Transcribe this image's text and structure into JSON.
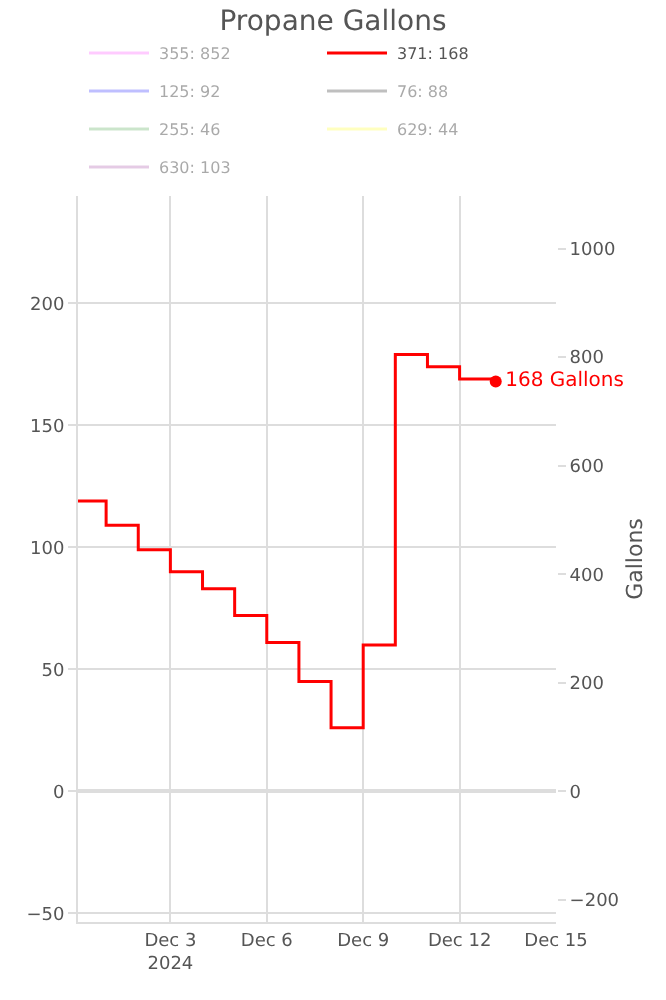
{
  "chart_data": {
    "type": "step",
    "title": "Propane Gallons",
    "y2label": "Gallons",
    "x": [
      "2024-11-30T03:00",
      "2024-12-01",
      "2024-12-02",
      "2024-12-03",
      "2024-12-04",
      "2024-12-05",
      "2024-12-06",
      "2024-12-07",
      "2024-12-08",
      "2024-12-09",
      "2024-12-10",
      "2024-12-11",
      "2024-12-12",
      "2024-12-13T03:00"
    ],
    "series": [
      {
        "name": "355: 852",
        "color": "#ff99ff",
        "values": [
          null,
          null,
          null,
          null,
          null,
          null,
          null,
          null,
          null,
          null,
          null,
          null,
          null,
          null
        ]
      },
      {
        "name": "371: 168",
        "color": "#ff0000",
        "values": [
          119,
          109,
          99,
          90,
          83,
          72,
          61,
          45,
          26,
          60,
          179,
          174,
          169,
          168
        ]
      },
      {
        "name": "125: 92",
        "color": "#8080ff",
        "values": [
          null,
          null,
          null,
          null,
          null,
          null,
          null,
          null,
          null,
          null,
          null,
          null,
          null,
          null
        ]
      },
      {
        "name": "76: 88",
        "color": "#808080",
        "values": [
          null,
          null,
          null,
          null,
          null,
          null,
          null,
          null,
          null,
          null,
          null,
          null,
          null,
          null
        ]
      },
      {
        "name": "255: 46",
        "color": "#99cc99",
        "values": [
          null,
          null,
          null,
          null,
          null,
          null,
          null,
          null,
          null,
          null,
          null,
          null,
          null,
          null
        ]
      },
      {
        "name": "629: 44",
        "color": "#ffff80",
        "values": [
          null,
          null,
          null,
          null,
          null,
          null,
          null,
          null,
          null,
          null,
          null,
          null,
          null,
          null
        ]
      },
      {
        "name": "630: 103",
        "color": "#cc99cc",
        "values": [
          null,
          null,
          null,
          null,
          null,
          null,
          null,
          null,
          null,
          null,
          null,
          null,
          null,
          null
        ]
      }
    ],
    "annotations": [
      {
        "text": "168 Gallons",
        "x": "2024-12-13T03:00",
        "y": 168
      }
    ],
    "xlim": [
      "2024-11-30T03:00",
      "2024-12-15"
    ],
    "xticks": [
      {
        "value": "2024-12-03",
        "label": "Dec 3\n2024"
      },
      {
        "value": "2024-12-06",
        "label": "Dec 6"
      },
      {
        "value": "2024-12-09",
        "label": "Dec 9"
      },
      {
        "value": "2024-12-12",
        "label": "Dec 12"
      },
      {
        "value": "2024-12-15",
        "label": "Dec 15"
      }
    ],
    "ylim": [
      -53.6,
      244
    ],
    "yticks": [
      -50,
      0,
      50,
      100,
      150,
      200
    ],
    "y2lim": [
      -241,
      1097
    ],
    "y2ticks": [
      -200,
      0,
      200,
      400,
      600,
      800,
      1000
    ],
    "grid": true,
    "legend": "top",
    "marker": "none",
    "line_style": "solid"
  }
}
